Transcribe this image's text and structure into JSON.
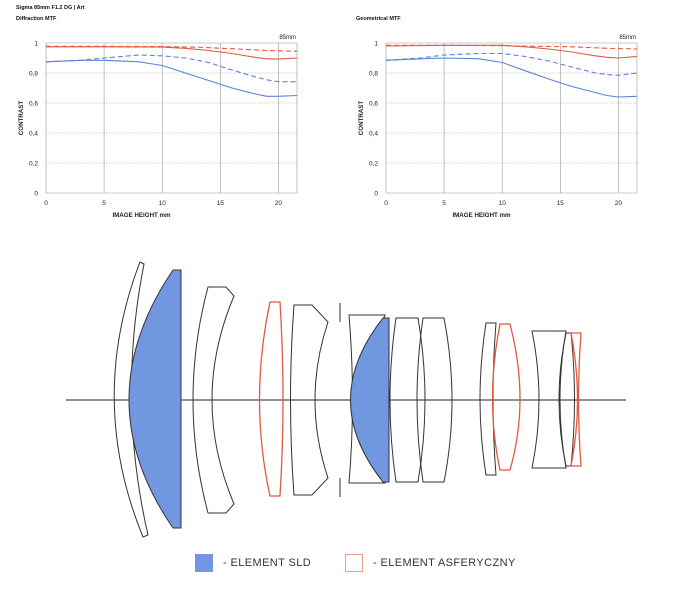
{
  "page": {
    "lens_title": "Sigma 85mm F1.2 DG | Art"
  },
  "colors": {
    "sld_fill": "#7097e0",
    "aspherical": "#e05a40",
    "sagittal": "#5b82d6",
    "lens_outline": "#333333",
    "grid": "#9a9a9a"
  },
  "chart_data": [
    {
      "type": "line",
      "title": "Diffraction MTF",
      "annotation": "85mm",
      "xlabel": "IMAGE HEIGHT  mm",
      "ylabel": "CONTRAST",
      "xlim": [
        0,
        21.6
      ],
      "ylim": [
        0,
        1
      ],
      "x_ticks": [
        "0",
        "5",
        "10",
        "15",
        "20"
      ],
      "y_ticks": [
        "0",
        "0,2",
        "0,4",
        "0,6",
        "0,8",
        "1"
      ],
      "grid": true,
      "series": [
        {
          "color": "#e05a40",
          "dash": false,
          "x": [
            0,
            5,
            10,
            12,
            14,
            16,
            18,
            19,
            20,
            21.6
          ],
          "y": [
            0.975,
            0.975,
            0.973,
            0.965,
            0.95,
            0.93,
            0.905,
            0.895,
            0.893,
            0.9
          ]
        },
        {
          "color": "#e05a40",
          "dash": true,
          "x": [
            0,
            5,
            10,
            13,
            16,
            19,
            21.6
          ],
          "y": [
            0.978,
            0.978,
            0.976,
            0.972,
            0.962,
            0.95,
            0.945
          ]
        },
        {
          "color": "#5b82d6",
          "dash": false,
          "x": [
            0,
            3,
            5,
            8,
            10,
            12,
            14,
            16,
            18,
            19,
            20,
            21.6
          ],
          "y": [
            0.875,
            0.885,
            0.885,
            0.875,
            0.85,
            0.8,
            0.75,
            0.7,
            0.66,
            0.645,
            0.645,
            0.65
          ]
        },
        {
          "color": "#5b82d6",
          "dash": true,
          "x": [
            0,
            3,
            5,
            8,
            10,
            12,
            14,
            16,
            18,
            19,
            20,
            21.6
          ],
          "y": [
            0.875,
            0.885,
            0.9,
            0.92,
            0.915,
            0.9,
            0.87,
            0.82,
            0.775,
            0.755,
            0.742,
            0.742
          ]
        }
      ]
    },
    {
      "type": "line",
      "title": "Geometrical MTF",
      "annotation": "85mm",
      "xlabel": "IMAGE HEIGHT  mm",
      "ylabel": "CONTRAST",
      "xlim": [
        0,
        21.6
      ],
      "ylim": [
        0,
        1
      ],
      "x_ticks": [
        "0",
        "5",
        "10",
        "15",
        "20"
      ],
      "y_ticks": [
        "0",
        "0,2",
        "0,4",
        "0,6",
        "0,8",
        "1"
      ],
      "grid": true,
      "series": [
        {
          "color": "#e05a40",
          "dash": false,
          "x": [
            0,
            5,
            10,
            12,
            14,
            16,
            18,
            19,
            20,
            21.6
          ],
          "y": [
            0.98,
            0.985,
            0.985,
            0.975,
            0.96,
            0.94,
            0.915,
            0.905,
            0.9,
            0.91
          ]
        },
        {
          "color": "#e05a40",
          "dash": true,
          "x": [
            0,
            5,
            10,
            13,
            16,
            19,
            21.6
          ],
          "y": [
            0.985,
            0.985,
            0.982,
            0.978,
            0.975,
            0.965,
            0.96
          ]
        },
        {
          "color": "#5b82d6",
          "dash": false,
          "x": [
            0,
            3,
            5,
            8,
            10,
            12,
            14,
            16,
            18,
            19,
            20,
            21.6
          ],
          "y": [
            0.885,
            0.895,
            0.9,
            0.895,
            0.87,
            0.815,
            0.76,
            0.71,
            0.67,
            0.65,
            0.64,
            0.645
          ]
        },
        {
          "color": "#5b82d6",
          "dash": true,
          "x": [
            0,
            3,
            5,
            8,
            10,
            12,
            14,
            16,
            18,
            19,
            20,
            21.6
          ],
          "y": [
            0.885,
            0.9,
            0.92,
            0.93,
            0.93,
            0.91,
            0.88,
            0.84,
            0.8,
            0.79,
            0.785,
            0.8
          ]
        }
      ]
    }
  ],
  "legend": {
    "sld_label": "- ELEMENT SLD",
    "aspherical_label": "- ELEMENT ASFERYCZNY"
  }
}
